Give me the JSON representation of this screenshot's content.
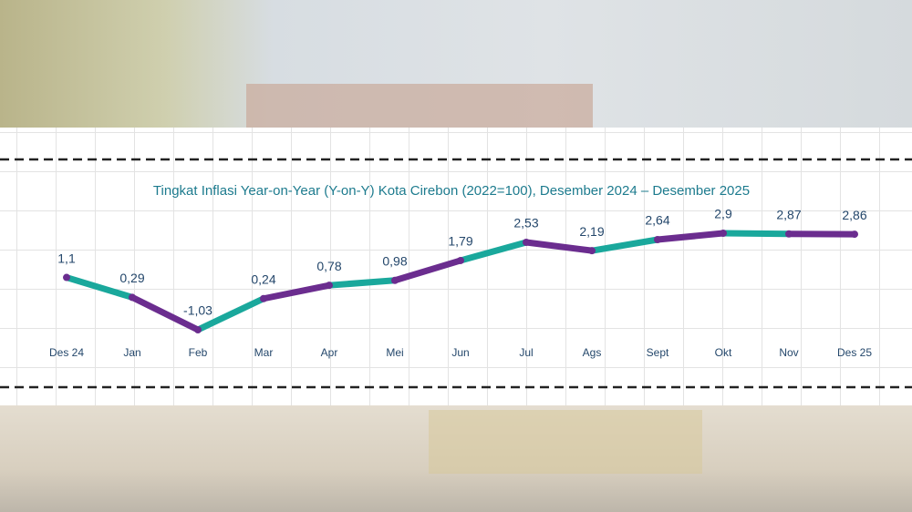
{
  "chart_data": {
    "type": "line",
    "title": "Tingkat Inflasi Year-on-Year (Y-on-Y) Kota Cirebon (2022=100), Desember 2024 – Desember 2025",
    "categories": [
      "Des 24",
      "Jan",
      "Feb",
      "Mar",
      "Apr",
      "Mei",
      "Jun",
      "Jul",
      "Ags",
      "Sept",
      "Okt",
      "Nov",
      "Des 25"
    ],
    "values": [
      1.1,
      0.29,
      -1.03,
      0.24,
      0.78,
      0.98,
      1.79,
      2.53,
      2.19,
      2.64,
      2.9,
      2.87,
      2.86
    ],
    "value_labels": [
      "1,1",
      "0,29",
      "-1,03",
      "0,24",
      "0,78",
      "0,98",
      "1,79",
      "2,53",
      "2,19",
      "2,64",
      "2,9",
      "2,87",
      "2,86"
    ],
    "segment_colors": [
      "#1aa89c",
      "#6b2d8f"
    ],
    "marker_color": "#6b2d8f"
  }
}
